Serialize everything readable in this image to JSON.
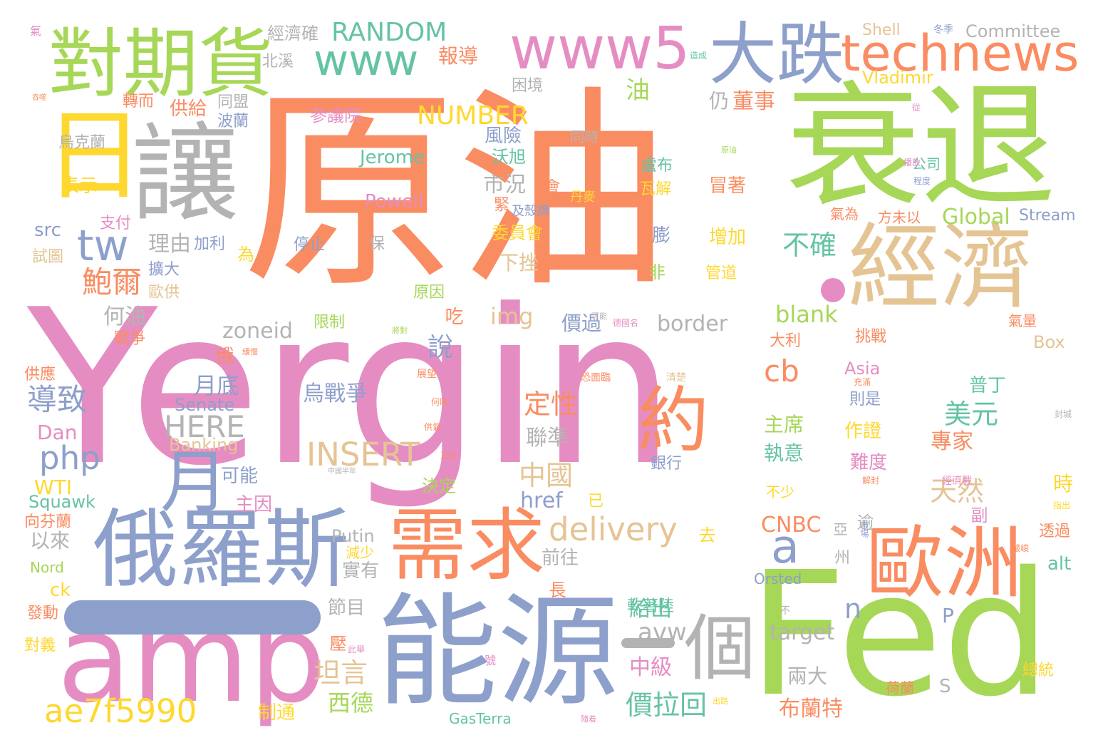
{
  "palette": {
    "pink": "#e58dc3",
    "orange": "#fa8c62",
    "green": "#a6d757",
    "blue": "#8d9fcb",
    "gray": "#b3b3b3",
    "tan": "#e5c494",
    "teal": "#65c3a5",
    "yellow": "#fed82f"
  },
  "words": [
    {
      "text": "Yergin",
      "color": "pink"
    },
    {
      "text": "原油",
      "color": "orange"
    },
    {
      "text": "衰退",
      "color": "green"
    },
    {
      "text": "Fed",
      "color": "green"
    },
    {
      "text": "amp",
      "color": "pink"
    },
    {
      "text": "能源",
      "color": "blue"
    },
    {
      "text": "俄羅斯",
      "color": "blue"
    },
    {
      "text": "需求",
      "color": "orange"
    },
    {
      "text": "經濟",
      "color": "tan"
    },
    {
      "text": "歐洲",
      "color": "orange"
    },
    {
      "text": "讓",
      "color": "gray"
    },
    {
      "text": "大跌",
      "color": "blue"
    },
    {
      "text": "對期貨",
      "color": "green"
    },
    {
      "text": "technews",
      "color": "orange"
    },
    {
      "text": "www5",
      "color": "pink"
    },
    {
      "text": "www",
      "color": "teal"
    },
    {
      "text": "日",
      "color": "yellow"
    },
    {
      "text": "約",
      "color": "orange"
    },
    {
      "text": "月",
      "color": "blue"
    },
    {
      "text": "個",
      "color": "gray"
    },
    {
      "text": "RANDOM",
      "color": "teal"
    },
    {
      "text": "NUMBER",
      "color": "yellow"
    },
    {
      "text": "tw",
      "color": "blue"
    },
    {
      "text": "a",
      "color": "blue"
    },
    {
      "text": "n",
      "color": "blue"
    },
    {
      "text": "ae7f5990",
      "color": "yellow"
    },
    {
      "text": "php",
      "color": "blue"
    },
    {
      "text": "delivery",
      "color": "tan"
    },
    {
      "text": "INSERT",
      "color": "tan"
    },
    {
      "text": "HERE",
      "color": "gray"
    },
    {
      "text": "zoneid",
      "color": "gray"
    },
    {
      "text": "border",
      "color": "gray"
    },
    {
      "text": "blank",
      "color": "green"
    },
    {
      "text": "cb",
      "color": "orange"
    },
    {
      "text": "img",
      "color": "tan"
    },
    {
      "text": "href",
      "color": "blue"
    },
    {
      "text": "avw",
      "color": "gray"
    },
    {
      "text": "target",
      "color": "gray"
    },
    {
      "text": "CNBC",
      "color": "orange"
    },
    {
      "text": "Global",
      "color": "green"
    },
    {
      "text": "Committee",
      "color": "gray"
    },
    {
      "text": "Jerome",
      "color": "teal"
    },
    {
      "text": "Powell",
      "color": "pink"
    },
    {
      "text": "Shell",
      "color": "tan"
    },
    {
      "text": "Vladimir",
      "color": "yellow"
    },
    {
      "text": "Stream",
      "color": "blue"
    },
    {
      "text": "Box",
      "color": "tan"
    },
    {
      "text": "Asia",
      "color": "pink"
    },
    {
      "text": "Senate",
      "color": "blue"
    },
    {
      "text": "Banking",
      "color": "tan"
    },
    {
      "text": "Dan",
      "color": "pink"
    },
    {
      "text": "WTI",
      "color": "yellow"
    },
    {
      "text": "Squawk",
      "color": "teal"
    },
    {
      "text": "Putin",
      "color": "gray"
    },
    {
      "text": "Nord",
      "color": "green"
    },
    {
      "text": "ck",
      "color": "yellow"
    },
    {
      "text": "Orsted",
      "color": "blue"
    },
    {
      "text": "GasTerra",
      "color": "teal"
    },
    {
      "text": "src",
      "color": "blue"
    },
    {
      "text": "alt",
      "color": "teal"
    },
    {
      "text": "P",
      "color": "blue"
    },
    {
      "text": "S",
      "color": "gray"
    },
    {
      "text": "鮑爾",
      "color": "orange"
    },
    {
      "text": "導致",
      "color": "blue"
    },
    {
      "text": "坦言",
      "color": "tan"
    },
    {
      "text": "價拉回",
      "color": "teal"
    },
    {
      "text": "美元",
      "color": "teal"
    },
    {
      "text": "天然",
      "color": "tan"
    },
    {
      "text": "中國",
      "color": "tan"
    },
    {
      "text": "定性",
      "color": "orange"
    },
    {
      "text": "烏戰爭",
      "color": "blue"
    },
    {
      "text": "報導",
      "color": "orange"
    },
    {
      "text": "經濟確",
      "color": "gray"
    },
    {
      "text": "北溪",
      "color": "gray"
    },
    {
      "text": "供給",
      "color": "orange"
    },
    {
      "text": "董事",
      "color": "orange"
    },
    {
      "text": "仍",
      "color": "gray"
    },
    {
      "text": "油",
      "color": "green"
    },
    {
      "text": "不確",
      "color": "teal"
    },
    {
      "text": "市況",
      "color": "gray"
    },
    {
      "text": "理由",
      "color": "gray"
    },
    {
      "text": "何油",
      "color": "gray"
    },
    {
      "text": "說",
      "color": "blue"
    },
    {
      "text": "月底",
      "color": "blue"
    },
    {
      "text": "聯準",
      "color": "gray"
    },
    {
      "text": "西德",
      "color": "green"
    },
    {
      "text": "布蘭特",
      "color": "orange"
    },
    {
      "text": "給出",
      "color": "teal"
    },
    {
      "text": "中級",
      "color": "pink"
    },
    {
      "text": "專家",
      "color": "orange"
    },
    {
      "text": "普丁",
      "color": "teal"
    },
    {
      "text": "主席",
      "color": "green"
    },
    {
      "text": "執意",
      "color": "teal"
    },
    {
      "text": "作證",
      "color": "yellow"
    },
    {
      "text": "難度",
      "color": "pink"
    },
    {
      "text": "兩大",
      "color": "gray"
    },
    {
      "text": "前往",
      "color": "gray"
    },
    {
      "text": "實有",
      "color": "gray"
    },
    {
      "text": "以來",
      "color": "gray"
    },
    {
      "text": "主因",
      "color": "pink"
    },
    {
      "text": "可能",
      "color": "blue"
    },
    {
      "text": "決定",
      "color": "green"
    },
    {
      "text": "節目",
      "color": "gray"
    },
    {
      "text": "制通",
      "color": "yellow"
    },
    {
      "text": "價過",
      "color": "blue"
    },
    {
      "text": "下挫",
      "color": "tan"
    },
    {
      "text": "委員會",
      "color": "yellow"
    },
    {
      "text": "風險",
      "color": "blue"
    },
    {
      "text": "沃旭",
      "color": "teal"
    },
    {
      "text": "參議院",
      "color": "pink"
    },
    {
      "text": "波蘭",
      "color": "blue"
    },
    {
      "text": "同盟",
      "color": "gray"
    },
    {
      "text": "烏克蘭",
      "color": "gray"
    },
    {
      "text": "表示",
      "color": "yellow"
    },
    {
      "text": "轉而",
      "color": "orange"
    },
    {
      "text": "困境",
      "color": "gray"
    },
    {
      "text": "盧布",
      "color": "teal"
    },
    {
      "text": "瓦解",
      "color": "yellow"
    },
    {
      "text": "冒著",
      "color": "orange"
    },
    {
      "text": "增加",
      "color": "yellow"
    },
    {
      "text": "管道",
      "color": "yellow"
    },
    {
      "text": "膨",
      "color": "blue"
    },
    {
      "text": "非",
      "color": "green"
    },
    {
      "text": "限制",
      "color": "green"
    },
    {
      "text": "原因",
      "color": "green"
    },
    {
      "text": "停止",
      "color": "blue"
    },
    {
      "text": "保",
      "color": "gray"
    },
    {
      "text": "為",
      "color": "yellow"
    },
    {
      "text": "加利",
      "color": "blue"
    },
    {
      "text": "擴大",
      "color": "blue"
    },
    {
      "text": "歐供",
      "color": "tan"
    },
    {
      "text": "試圖",
      "color": "tan"
    },
    {
      "text": "支付",
      "color": "pink"
    },
    {
      "text": "戰爭",
      "color": "orange"
    },
    {
      "text": "供應",
      "color": "orange"
    },
    {
      "text": "發動",
      "color": "orange"
    },
    {
      "text": "對義",
      "color": "yellow"
    },
    {
      "text": "向芬蘭",
      "color": "orange"
    },
    {
      "text": "大利",
      "color": "orange"
    },
    {
      "text": "挑戰",
      "color": "orange"
    },
    {
      "text": "則是",
      "color": "blue"
    },
    {
      "text": "透過",
      "color": "orange"
    },
    {
      "text": "時",
      "color": "yellow"
    },
    {
      "text": "氣為",
      "color": "orange"
    },
    {
      "text": "方未以",
      "color": "orange"
    },
    {
      "text": "公司",
      "color": "teal"
    },
    {
      "text": "氣量",
      "color": "orange"
    },
    {
      "text": "總統",
      "color": "yellow"
    },
    {
      "text": "荷蘭",
      "color": "orange"
    },
    {
      "text": "緊",
      "color": "orange"
    },
    {
      "text": "會",
      "color": "orange"
    },
    {
      "text": "吃",
      "color": "orange"
    },
    {
      "text": "俄",
      "color": "orange"
    },
    {
      "text": "長",
      "color": "orange"
    },
    {
      "text": "去",
      "color": "yellow"
    },
    {
      "text": "壓",
      "color": "orange"
    },
    {
      "text": "逾",
      "color": "gray"
    },
    {
      "text": "副",
      "color": "pink"
    },
    {
      "text": "州",
      "color": "gray"
    },
    {
      "text": "亞",
      "color": "gray"
    },
    {
      "text": "不少",
      "color": "yellow"
    },
    {
      "text": "已",
      "color": "yellow"
    },
    {
      "text": "銀行",
      "color": "blue"
    },
    {
      "text": "減少",
      "color": "yellow"
    },
    {
      "text": "同時",
      "color": "gray"
    },
    {
      "text": "丹麥",
      "color": "yellow"
    },
    {
      "text": "及殼牌",
      "color": "blue"
    },
    {
      "text": "軟著陸",
      "color": "teal"
    },
    {
      "text": "號",
      "color": "pink"
    },
    {
      "text": "此舉",
      "color": "pink"
    },
    {
      "text": "氣",
      "color": "pink"
    },
    {
      "text": "冬季",
      "color": "blue"
    },
    {
      "text": "造成",
      "color": "teal"
    },
    {
      "text": "從",
      "color": "pink"
    },
    {
      "text": "播放",
      "color": "pink"
    },
    {
      "text": "程度",
      "color": "blue"
    },
    {
      "text": "原油",
      "color": "green"
    },
    {
      "text": "可能",
      "color": "gray"
    },
    {
      "text": "展望",
      "color": "orange"
    },
    {
      "text": "何時",
      "color": "orange"
    },
    {
      "text": "供氣",
      "color": "orange"
    },
    {
      "text": "正在",
      "color": "orange"
    },
    {
      "text": "中國半年",
      "color": "gray"
    },
    {
      "text": "解封",
      "color": "orange"
    },
    {
      "text": "經濟戰",
      "color": "pink"
    },
    {
      "text": "市場",
      "color": "blue"
    },
    {
      "text": "指出",
      "color": "yellow"
    },
    {
      "text": "嚴峻",
      "color": "orange"
    },
    {
      "text": "封城",
      "color": "gray"
    },
    {
      "text": "德國名",
      "color": "pink"
    },
    {
      "text": "緩慢",
      "color": "orange"
    },
    {
      "text": "將對",
      "color": "green"
    },
    {
      "text": "恐面臨",
      "color": "orange"
    },
    {
      "text": "清楚",
      "color": "tan"
    },
    {
      "text": "充滿",
      "color": "orange"
    },
    {
      "text": "不",
      "color": "gray"
    },
    {
      "text": "隨着",
      "color": "pink"
    },
    {
      "text": "出路",
      "color": "yellow"
    },
    {
      "text": "吞噬",
      "color": "orange"
    }
  ]
}
